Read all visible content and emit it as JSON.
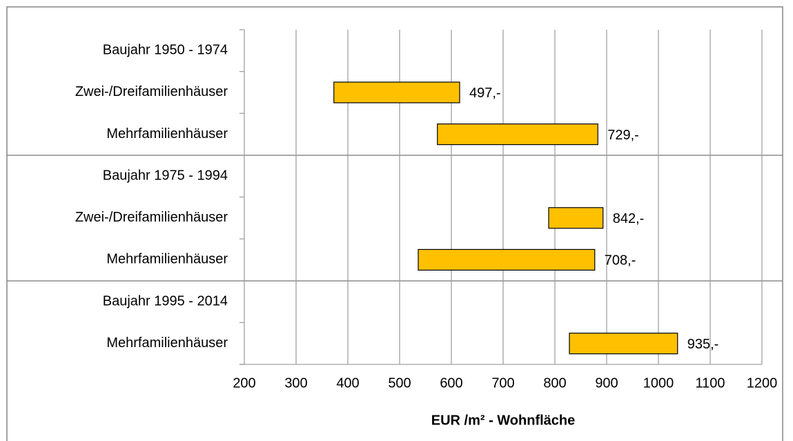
{
  "chart_data": {
    "type": "range-bar",
    "categories": [
      "Baujahr 1950 - 1974",
      "Zwei-/Dreifamilienhäuser",
      "Mehrfamilienhäuser",
      "Baujahr 1975 - 1994",
      "Zwei-/Dreifamilienhäuser",
      "Mehrfamilienhäuser",
      "Baujahr 1995 - 2014",
      "Mehrfamilienhäuser"
    ],
    "low": [
      null,
      373,
      573,
      null,
      788,
      536,
      null,
      828
    ],
    "high": [
      null,
      616,
      883,
      null,
      893,
      877,
      null,
      1037
    ],
    "values": [
      null,
      497,
      729,
      null,
      842,
      708,
      null,
      935
    ],
    "value_labels": [
      null,
      "497,-",
      "729,-",
      null,
      "842,-",
      "708,-",
      null,
      "935,-"
    ],
    "color": "#ffc000",
    "x_label": "EUR /m² - Wohnfläche",
    "xlim": [
      200,
      1200
    ],
    "xticks": [
      200,
      300,
      400,
      500,
      600,
      700,
      800,
      900,
      1000,
      1100,
      1200
    ],
    "grid": true
  }
}
